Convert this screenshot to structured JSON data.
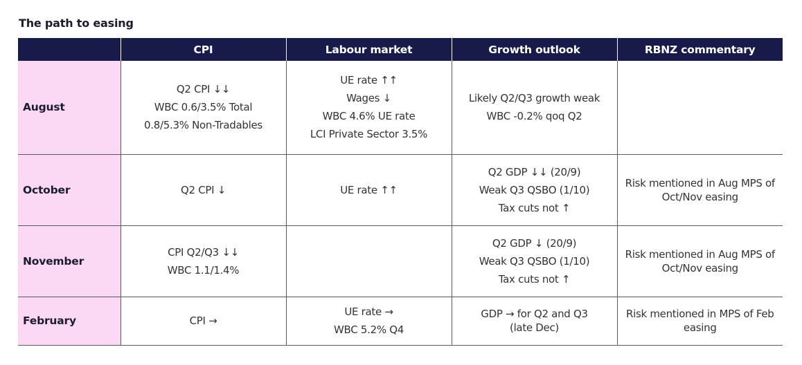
{
  "title": "The path to easing",
  "headers": [
    "",
    "CPI",
    "Labour market",
    "Growth outlook",
    "RBNZ commentary"
  ],
  "rows": [
    {
      "month": "August",
      "cpi": [
        "Q2 CPI ↓↓",
        "WBC 0.6/3.5% Total",
        "0.8/5.3% Non-Tradables"
      ],
      "labour": [
        "UE rate ↑↑",
        "Wages ↓",
        "WBC 4.6% UE rate",
        "LCI Private Sector 3.5%"
      ],
      "growth": [
        "Likely Q2/Q3 growth weak",
        "WBC -0.2% qoq Q2"
      ],
      "rbnz": []
    },
    {
      "month": "October",
      "cpi": [
        "Q2 CPI ↓"
      ],
      "labour": [
        "UE rate ↑↑"
      ],
      "growth": [
        "Q2 GDP ↓↓ (20/9)",
        "Weak Q3 QSBO (1/10)",
        "Tax cuts not ↑"
      ],
      "rbnz": [
        "Risk mentioned in Aug MPS of Oct/Nov easing"
      ]
    },
    {
      "month": "November",
      "cpi": [
        "CPI Q2/Q3 ↓↓",
        "WBC 1.1/1.4%"
      ],
      "labour": [],
      "growth": [
        "Q2 GDP ↓ (20/9)",
        "Weak Q3 QSBO (1/10)",
        "Tax cuts not ↑"
      ],
      "rbnz": [
        "Risk mentioned in Aug MPS of Oct/Nov easing"
      ]
    },
    {
      "month": "February",
      "cpi": [
        "CPI →"
      ],
      "labour": [
        "UE rate →",
        "WBC 5.2% Q4"
      ],
      "growth": [
        "GDP → for Q2 and Q3 (late Dec)"
      ],
      "rbnz": [
        "Risk mentioned in MPS of Feb easing"
      ]
    }
  ]
}
